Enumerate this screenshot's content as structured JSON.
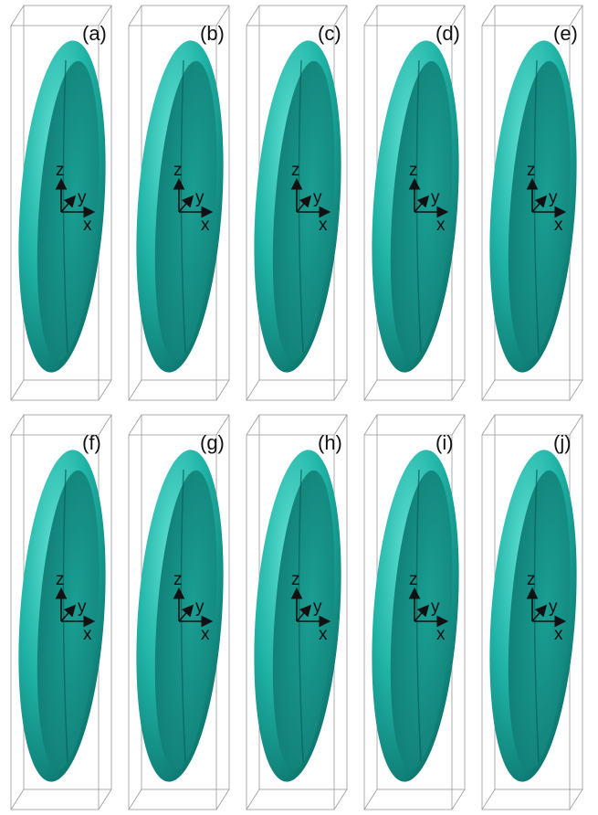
{
  "panels": [
    {
      "label": "(a)",
      "axis_labels": [
        "z",
        "y",
        "x"
      ]
    },
    {
      "label": "(b)",
      "axis_labels": [
        "z",
        "y",
        "x"
      ]
    },
    {
      "label": "(c)",
      "axis_labels": [
        "z",
        "y",
        "x"
      ]
    },
    {
      "label": "(d)",
      "axis_labels": [
        "z",
        "y",
        "x"
      ]
    },
    {
      "label": "(e)",
      "axis_labels": [
        "z",
        "y",
        "x"
      ]
    },
    {
      "label": "(f)",
      "axis_labels": [
        "z",
        "y",
        "x"
      ]
    },
    {
      "label": "(g)",
      "axis_labels": [
        "z",
        "y",
        "x"
      ]
    },
    {
      "label": "(h)",
      "axis_labels": [
        "z",
        "y",
        "x"
      ]
    },
    {
      "label": "(i)",
      "axis_labels": [
        "z",
        "y",
        "x"
      ]
    },
    {
      "label": "(j)",
      "axis_labels": [
        "z",
        "y",
        "x"
      ]
    }
  ]
}
